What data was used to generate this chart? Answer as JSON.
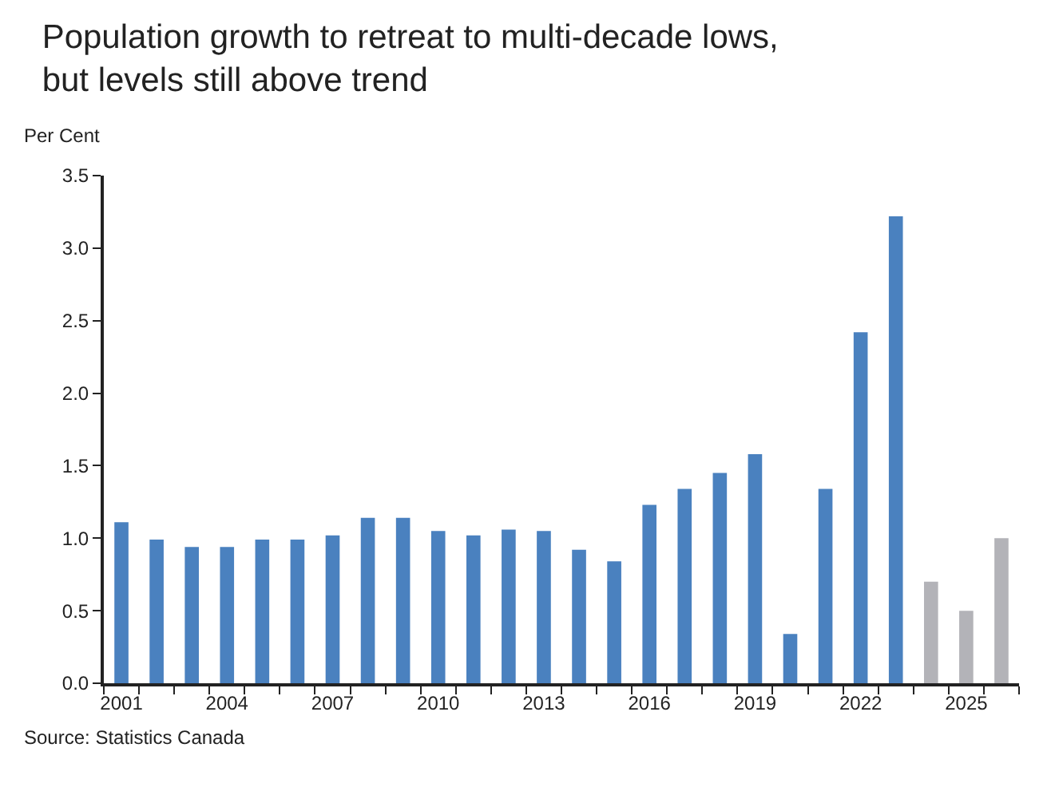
{
  "chart_data": {
    "type": "bar",
    "title": "Population growth to retreat to multi-decade lows,\nbut levels still above trend",
    "ylabel": "Per Cent",
    "categories": [
      "2001",
      null,
      null,
      "2004",
      null,
      null,
      "2007",
      null,
      null,
      "2010",
      null,
      null,
      "2013",
      null,
      null,
      "2016",
      null,
      null,
      "2019",
      null,
      null,
      "2022",
      null,
      null,
      "2025",
      null
    ],
    "values": [
      1.11,
      0.99,
      0.94,
      0.94,
      0.99,
      0.99,
      1.02,
      1.14,
      1.14,
      1.05,
      1.02,
      1.06,
      1.05,
      0.92,
      0.84,
      1.23,
      1.34,
      1.45,
      1.58,
      0.34,
      1.34,
      2.42,
      3.22,
      0.7,
      0.5,
      1.0
    ],
    "colors": [
      "#4a81bf",
      "#4a81bf",
      "#4a81bf",
      "#4a81bf",
      "#4a81bf",
      "#4a81bf",
      "#4a81bf",
      "#4a81bf",
      "#4a81bf",
      "#4a81bf",
      "#4a81bf",
      "#4a81bf",
      "#4a81bf",
      "#4a81bf",
      "#4a81bf",
      "#4a81bf",
      "#4a81bf",
      "#4a81bf",
      "#4a81bf",
      "#4a81bf",
      "#4a81bf",
      "#4a81bf",
      "#4a81bf",
      "#b3b3b8",
      "#b3b3b8",
      "#b3b3b8"
    ],
    "ylim": [
      0,
      3.5
    ],
    "yticks": [
      {
        "value": 0,
        "label": "0.0"
      },
      {
        "value": 0.5,
        "label": "0.5"
      },
      {
        "value": 1,
        "label": "1.0"
      },
      {
        "value": 1.5,
        "label": "1.5"
      },
      {
        "value": 2,
        "label": "2.0"
      },
      {
        "value": 2.5,
        "label": "2.5"
      },
      {
        "value": 3,
        "label": "3.0"
      },
      {
        "value": 3.5,
        "label": "3.5"
      }
    ],
    "annotations": [
      "Source: Statistics Canada"
    ]
  }
}
